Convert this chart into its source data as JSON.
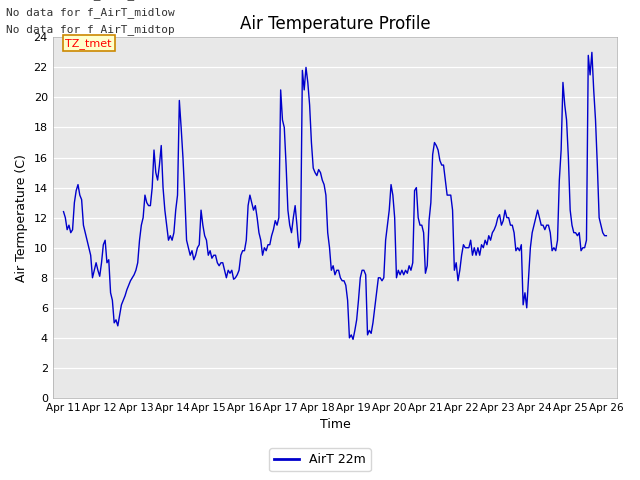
{
  "title": "Air Temperature Profile",
  "xlabel": "Time",
  "ylabel": "Air Termperature (C)",
  "ylim": [
    0,
    24
  ],
  "yticks": [
    0,
    2,
    4,
    6,
    8,
    10,
    12,
    14,
    16,
    18,
    20,
    22,
    24
  ],
  "bg_color": "#e8e8e8",
  "line_color": "#0000cc",
  "legend_label": "AirT 22m",
  "annotations": [
    "No data for f_AirT_low",
    "No data for f_AirT_midlow",
    "No data for f_AirT_midtop"
  ],
  "tz_label": "TZ_tmet",
  "x_labels": [
    "Apr 11",
    "Apr 12",
    "Apr 13",
    "Apr 14",
    "Apr 15",
    "Apr 16",
    "Apr 17",
    "Apr 18",
    "Apr 19",
    "Apr 20",
    "Apr 21",
    "Apr 22",
    "Apr 23",
    "Apr 24",
    "Apr 25",
    "Apr 26"
  ],
  "x_vals": [
    0.0,
    0.05,
    0.1,
    0.15,
    0.2,
    0.25,
    0.3,
    0.35,
    0.4,
    0.45,
    0.5,
    0.55,
    0.6,
    0.65,
    0.7,
    0.75,
    0.8,
    0.85,
    0.9,
    0.95,
    1.0,
    1.05,
    1.1,
    1.15,
    1.2,
    1.25,
    1.3,
    1.35,
    1.4,
    1.45,
    1.5,
    1.55,
    1.6,
    1.65,
    1.7,
    1.75,
    1.8,
    1.85,
    1.9,
    1.95,
    2.0,
    2.05,
    2.1,
    2.15,
    2.2,
    2.25,
    2.3,
    2.35,
    2.4,
    2.45,
    2.5,
    2.55,
    2.6,
    2.65,
    2.7,
    2.75,
    2.8,
    2.85,
    2.9,
    2.95,
    3.0,
    3.05,
    3.1,
    3.15,
    3.2,
    3.25,
    3.3,
    3.35,
    3.4,
    3.45,
    3.5,
    3.55,
    3.6,
    3.65,
    3.7,
    3.75,
    3.8,
    3.85,
    3.9,
    3.95,
    4.0,
    4.05,
    4.1,
    4.15,
    4.2,
    4.25,
    4.3,
    4.35,
    4.4,
    4.45,
    4.5,
    4.55,
    4.6,
    4.65,
    4.7,
    4.75,
    4.8,
    4.85,
    4.9,
    4.95,
    5.0,
    5.05,
    5.1,
    5.15,
    5.2,
    5.25,
    5.3,
    5.35,
    5.4,
    5.45,
    5.5,
    5.55,
    5.6,
    5.65,
    5.7,
    5.75,
    5.8,
    5.85,
    5.9,
    5.95,
    6.0,
    6.05,
    6.1,
    6.15,
    6.2,
    6.25,
    6.3,
    6.35,
    6.4,
    6.45,
    6.5,
    6.55,
    6.6,
    6.65,
    6.7,
    6.75,
    6.8,
    6.85,
    6.9,
    6.95,
    7.0,
    7.05,
    7.1,
    7.15,
    7.2,
    7.25,
    7.3,
    7.35,
    7.4,
    7.45,
    7.5,
    7.55,
    7.6,
    7.65,
    7.7,
    7.75,
    7.8,
    7.85,
    7.9,
    7.95,
    8.0,
    8.05,
    8.1,
    8.15,
    8.2,
    8.25,
    8.3,
    8.35,
    8.4,
    8.45,
    8.5,
    8.55,
    8.6,
    8.65,
    8.7,
    8.75,
    8.8,
    8.85,
    8.9,
    8.95,
    9.0,
    9.05,
    9.1,
    9.15,
    9.2,
    9.25,
    9.3,
    9.35,
    9.4,
    9.45,
    9.5,
    9.55,
    9.6,
    9.65,
    9.7,
    9.75,
    9.8,
    9.85,
    9.9,
    9.95,
    10.0,
    10.05,
    10.1,
    10.15,
    10.2,
    10.25,
    10.3,
    10.35,
    10.4,
    10.45,
    10.5,
    10.55,
    10.6,
    10.65,
    10.7,
    10.75,
    10.8,
    10.85,
    10.9,
    10.95,
    11.0,
    11.05,
    11.1,
    11.15,
    11.2,
    11.25,
    11.3,
    11.35,
    11.4,
    11.45,
    11.5,
    11.55,
    11.6,
    11.65,
    11.7,
    11.75,
    11.8,
    11.85,
    11.9,
    11.95,
    12.0,
    12.05,
    12.1,
    12.15,
    12.2,
    12.25,
    12.3,
    12.35,
    12.4,
    12.45,
    12.5,
    12.55,
    12.6,
    12.65,
    12.7,
    12.75,
    12.8,
    12.85,
    12.9,
    12.95,
    13.0,
    13.05,
    13.1,
    13.15,
    13.2,
    13.25,
    13.3,
    13.35,
    13.4,
    13.45,
    13.5,
    13.55,
    13.6,
    13.65,
    13.7,
    13.75,
    13.8,
    13.85,
    13.9,
    13.95,
    14.0,
    14.05,
    14.1,
    14.15,
    14.2,
    14.25,
    14.3,
    14.35,
    14.4,
    14.45,
    14.5,
    14.55,
    14.6,
    14.65,
    14.7,
    14.75,
    14.8,
    14.85,
    14.9,
    14.95,
    15.0
  ],
  "y_vals": [
    12.4,
    12.0,
    11.2,
    11.5,
    11.0,
    11.2,
    13.0,
    13.8,
    14.2,
    13.5,
    13.2,
    11.5,
    11.0,
    10.5,
    10.0,
    9.5,
    8.0,
    8.5,
    9.0,
    8.5,
    8.1,
    9.0,
    10.2,
    10.5,
    9.0,
    9.2,
    7.0,
    6.5,
    5.0,
    5.2,
    4.8,
    5.5,
    6.2,
    6.5,
    6.8,
    7.2,
    7.5,
    7.8,
    8.0,
    8.2,
    8.5,
    9.0,
    10.5,
    11.5,
    12.0,
    13.5,
    13.0,
    12.8,
    12.8,
    14.0,
    16.5,
    15.0,
    14.5,
    15.5,
    16.8,
    14.0,
    12.5,
    11.5,
    10.5,
    10.8,
    10.5,
    11.0,
    12.5,
    13.5,
    19.8,
    18.0,
    16.0,
    13.5,
    10.5,
    10.0,
    9.5,
    9.8,
    9.2,
    9.5,
    10.0,
    10.2,
    12.5,
    11.5,
    10.8,
    10.5,
    9.5,
    9.8,
    9.3,
    9.5,
    9.5,
    9.0,
    8.8,
    9.0,
    9.0,
    8.5,
    8.0,
    8.5,
    8.3,
    8.5,
    7.9,
    8.0,
    8.2,
    8.5,
    9.5,
    9.8,
    9.8,
    10.5,
    12.8,
    13.5,
    13.0,
    12.5,
    12.8,
    12.0,
    11.0,
    10.5,
    9.5,
    10.0,
    9.8,
    10.2,
    10.2,
    10.8,
    11.2,
    11.8,
    11.5,
    12.0,
    20.5,
    18.5,
    18.0,
    15.5,
    12.5,
    11.5,
    11.0,
    12.0,
    12.8,
    11.5,
    10.0,
    10.5,
    21.8,
    20.5,
    22.0,
    21.0,
    19.5,
    17.0,
    15.3,
    15.0,
    14.8,
    15.2,
    15.0,
    14.5,
    14.2,
    13.5,
    11.0,
    10.0,
    8.5,
    8.8,
    8.2,
    8.5,
    8.5,
    8.0,
    7.8,
    7.8,
    7.5,
    6.5,
    4.0,
    4.2,
    3.9,
    4.5,
    5.2,
    6.5,
    8.0,
    8.5,
    8.5,
    8.2,
    4.2,
    4.5,
    4.3,
    5.0,
    6.0,
    7.0,
    8.0,
    8.0,
    7.8,
    8.0,
    10.5,
    11.5,
    12.5,
    14.2,
    13.5,
    12.0,
    8.0,
    8.5,
    8.2,
    8.5,
    8.2,
    8.5,
    8.3,
    8.8,
    8.5,
    9.0,
    13.8,
    14.0,
    12.0,
    11.5,
    11.5,
    11.0,
    8.3,
    8.8,
    11.8,
    13.0,
    16.2,
    17.0,
    16.8,
    16.5,
    15.8,
    15.5,
    15.5,
    14.5,
    13.5,
    13.5,
    13.5,
    12.5,
    8.5,
    9.0,
    7.8,
    8.5,
    9.5,
    10.2,
    10.0,
    10.0,
    10.0,
    10.5,
    9.5,
    10.0,
    9.5,
    10.0,
    9.5,
    10.2,
    10.0,
    10.5,
    10.2,
    10.8,
    10.5,
    11.0,
    11.2,
    11.5,
    12.0,
    12.2,
    11.5,
    11.8,
    12.5,
    12.0,
    12.0,
    11.5,
    11.5,
    11.0,
    9.8,
    10.0,
    9.8,
    10.2,
    6.2,
    7.0,
    6.0,
    8.0,
    10.0,
    11.0,
    11.5,
    12.0,
    12.5,
    12.0,
    11.5,
    11.5,
    11.2,
    11.5,
    11.5,
    11.0,
    9.8,
    10.0,
    9.8,
    10.5,
    14.5,
    16.5,
    21.0,
    19.5,
    18.5,
    16.0,
    12.5,
    11.5,
    11.0,
    11.0,
    10.8,
    11.0,
    9.8,
    10.0,
    10.0,
    10.5,
    22.8,
    21.5,
    23.0,
    20.5,
    18.5,
    15.5,
    12.0,
    11.5,
    11.0,
    10.8,
    10.8
  ]
}
